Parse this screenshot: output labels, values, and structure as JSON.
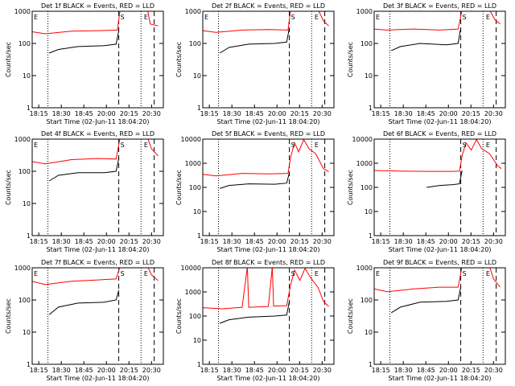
{
  "chart_data": [
    {
      "type": "line",
      "title": "Det 1f BLACK = Events, RED = LLD",
      "xlabel": "Start Time (02-Jun-11 18:04:20)",
      "ylabel": "Counts/sec",
      "yscale": "log",
      "ylim": [
        1,
        1000
      ],
      "yticks": [
        "1",
        "10",
        "100",
        "1000"
      ],
      "xticks": [
        "18:15",
        "18:30",
        "18:45",
        "20:00",
        "20:15",
        "20:30"
      ],
      "markers": [
        {
          "label": "E",
          "x": 0.0
        },
        {
          "label": "S",
          "x": 0.66
        },
        {
          "label": "E",
          "x": 0.84
        }
      ],
      "series": [
        {
          "color": "#ff0000",
          "points": [
            [
              0.0,
              230
            ],
            [
              0.1,
              200
            ],
            [
              0.3,
              240
            ],
            [
              0.5,
              250
            ],
            [
              0.65,
              260
            ],
            [
              0.67,
              1100
            ],
            [
              0.88,
              1100
            ],
            [
              0.9,
              400
            ],
            [
              0.96,
              350
            ]
          ]
        },
        {
          "color": "#000000",
          "points": [
            [
              0.13,
              50
            ],
            [
              0.2,
              65
            ],
            [
              0.35,
              80
            ],
            [
              0.55,
              85
            ],
            [
              0.64,
              95
            ],
            [
              0.66,
              250
            ]
          ]
        }
      ]
    },
    {
      "type": "line",
      "title": "Det 2f BLACK = Events, RED = LLD",
      "xlabel": "Start Time (02-Jun-11 18:04:20)",
      "ylabel": "Counts/sec",
      "yscale": "log",
      "ylim": [
        1,
        1000
      ],
      "yticks": [
        "1",
        "10",
        "100",
        "1000"
      ],
      "xticks": [
        "18:15",
        "18:30",
        "18:45",
        "20:00",
        "20:15",
        "20:30"
      ],
      "markers": [
        {
          "label": "E",
          "x": 0.0
        },
        {
          "label": "S",
          "x": 0.66
        },
        {
          "label": "E",
          "x": 0.84
        }
      ],
      "series": [
        {
          "color": "#ff0000",
          "points": [
            [
              0.0,
              250
            ],
            [
              0.1,
              220
            ],
            [
              0.3,
              260
            ],
            [
              0.5,
              270
            ],
            [
              0.65,
              260
            ],
            [
              0.67,
              1100
            ],
            [
              0.88,
              1100
            ],
            [
              0.92,
              500
            ],
            [
              0.96,
              350
            ]
          ]
        },
        {
          "color": "#000000",
          "points": [
            [
              0.13,
              50
            ],
            [
              0.2,
              75
            ],
            [
              0.35,
              95
            ],
            [
              0.55,
              100
            ],
            [
              0.64,
              110
            ],
            [
              0.66,
              300
            ]
          ]
        }
      ]
    },
    {
      "type": "line",
      "title": "Det 3f BLACK = Events, RED = LLD",
      "xlabel": "Start Time (02-Jun-11 18:04:20)",
      "ylabel": "Counts/sec",
      "yscale": "log",
      "ylim": [
        1,
        1000
      ],
      "yticks": [
        "1",
        "10",
        "100",
        "1000"
      ],
      "xticks": [
        "18:15",
        "18:30",
        "18:45",
        "20:00",
        "20:15",
        "20:30"
      ],
      "markers": [
        {
          "label": "E",
          "x": 0.0
        },
        {
          "label": "S",
          "x": 0.66
        },
        {
          "label": "E",
          "x": 0.84
        }
      ],
      "series": [
        {
          "color": "#ff0000",
          "points": [
            [
              0.0,
              280
            ],
            [
              0.1,
              260
            ],
            [
              0.3,
              280
            ],
            [
              0.5,
              260
            ],
            [
              0.64,
              280
            ],
            [
              0.67,
              1100
            ],
            [
              0.88,
              1100
            ],
            [
              0.92,
              550
            ],
            [
              0.96,
              400
            ]
          ]
        },
        {
          "color": "#000000",
          "points": [
            [
              0.13,
              60
            ],
            [
              0.2,
              80
            ],
            [
              0.35,
              100
            ],
            [
              0.55,
              90
            ],
            [
              0.64,
              100
            ],
            [
              0.66,
              300
            ]
          ]
        }
      ]
    },
    {
      "type": "line",
      "title": "Det 4f BLACK = Events, RED = LLD",
      "xlabel": "Start Time (02-Jun-11 18:04:20)",
      "ylabel": "Counts/sec",
      "yscale": "log",
      "ylim": [
        1,
        1000
      ],
      "yticks": [
        "1",
        "10",
        "100",
        "1000"
      ],
      "xticks": [
        "18:15",
        "18:30",
        "18:45",
        "20:00",
        "20:15",
        "20:30"
      ],
      "markers": [
        {
          "label": "E",
          "x": 0.0
        },
        {
          "label": "S",
          "x": 0.66
        },
        {
          "label": "E",
          "x": 0.84
        }
      ],
      "series": [
        {
          "color": "#ff0000",
          "points": [
            [
              0.0,
              200
            ],
            [
              0.1,
              170
            ],
            [
              0.3,
              230
            ],
            [
              0.5,
              250
            ],
            [
              0.64,
              240
            ],
            [
              0.67,
              1100
            ],
            [
              0.88,
              1100
            ],
            [
              0.91,
              500
            ],
            [
              0.96,
              300
            ]
          ]
        },
        {
          "color": "#000000",
          "points": [
            [
              0.13,
              50
            ],
            [
              0.2,
              75
            ],
            [
              0.35,
              90
            ],
            [
              0.55,
              90
            ],
            [
              0.64,
              100
            ],
            [
              0.66,
              250
            ]
          ]
        }
      ]
    },
    {
      "type": "line",
      "title": "Det 5f BLACK = Events, RED = LLD",
      "xlabel": "Start Time (02-Jun-11 18:04:20)",
      "ylabel": "Counts/sec",
      "yscale": "log",
      "ylim": [
        1,
        10000
      ],
      "yticks": [
        "1",
        "10",
        "100",
        "1000",
        "10000"
      ],
      "xticks": [
        "18:15",
        "18:30",
        "18:45",
        "20:00",
        "20:15",
        "20:30"
      ],
      "markers": [
        {
          "label": "S",
          "x": 0.66
        },
        {
          "label": "E",
          "x": 0.84
        }
      ],
      "series": [
        {
          "color": "#ff0000",
          "points": [
            [
              0.0,
              350
            ],
            [
              0.1,
              300
            ],
            [
              0.3,
              380
            ],
            [
              0.5,
              360
            ],
            [
              0.65,
              380
            ],
            [
              0.67,
              1800
            ],
            [
              0.7,
              7000
            ],
            [
              0.73,
              3000
            ],
            [
              0.77,
              9500
            ],
            [
              0.81,
              4000
            ],
            [
              0.86,
              2500
            ],
            [
              0.92,
              600
            ],
            [
              0.96,
              450
            ]
          ]
        },
        {
          "color": "#000000",
          "points": [
            [
              0.13,
              90
            ],
            [
              0.2,
              120
            ],
            [
              0.35,
              140
            ],
            [
              0.55,
              135
            ],
            [
              0.64,
              150
            ],
            [
              0.66,
              400
            ]
          ]
        }
      ]
    },
    {
      "type": "line",
      "title": "Det 6f BLACK = Events, RED = LLD",
      "xlabel": "Start Time (02-Jun-11 18:04:20)",
      "ylabel": "Counts/sec",
      "yscale": "log",
      "ylim": [
        1,
        10000
      ],
      "yticks": [
        "1",
        "10",
        "100",
        "1000",
        "10000"
      ],
      "xticks": [
        "18:15",
        "18:30",
        "18:45",
        "20:00",
        "20:15",
        "20:30"
      ],
      "markers": [
        {
          "label": "S",
          "x": 0.66
        },
        {
          "label": "E",
          "x": 0.84
        }
      ],
      "series": [
        {
          "color": "#ff0000",
          "points": [
            [
              0.0,
              500
            ],
            [
              0.2,
              470
            ],
            [
              0.4,
              460
            ],
            [
              0.6,
              460
            ],
            [
              0.65,
              470
            ],
            [
              0.67,
              2000
            ],
            [
              0.7,
              7000
            ],
            [
              0.74,
              3500
            ],
            [
              0.78,
              9500
            ],
            [
              0.82,
              4000
            ],
            [
              0.88,
              2500
            ],
            [
              0.94,
              800
            ],
            [
              0.97,
              600
            ]
          ]
        },
        {
          "color": "#000000",
          "points": [
            [
              0.4,
              100
            ],
            [
              0.5,
              120
            ],
            [
              0.6,
              130
            ],
            [
              0.65,
              140
            ],
            [
              0.67,
              500
            ]
          ]
        }
      ]
    },
    {
      "type": "line",
      "title": "Det 7f BLACK = Events, RED = LLD",
      "xlabel": "Start Time (02-Jun-11 18:04:20)",
      "ylabel": "Counts/sec",
      "yscale": "log",
      "ylim": [
        1,
        1000
      ],
      "yticks": [
        "1",
        "10",
        "100",
        "1000"
      ],
      "xticks": [
        "18:15",
        "18:30",
        "18:45",
        "20:00",
        "20:15",
        "20:30"
      ],
      "markers": [
        {
          "label": "E",
          "x": 0.0
        },
        {
          "label": "S",
          "x": 0.66
        },
        {
          "label": "E",
          "x": 0.84
        }
      ],
      "series": [
        {
          "color": "#ff0000",
          "points": [
            [
              0.0,
              380
            ],
            [
              0.1,
              300
            ],
            [
              0.3,
              380
            ],
            [
              0.5,
              420
            ],
            [
              0.64,
              450
            ],
            [
              0.67,
              1100
            ],
            [
              0.88,
              1100
            ],
            [
              0.91,
              600
            ],
            [
              0.96,
              400
            ]
          ]
        },
        {
          "color": "#000000",
          "points": [
            [
              0.13,
              35
            ],
            [
              0.2,
              60
            ],
            [
              0.35,
              80
            ],
            [
              0.55,
              85
            ],
            [
              0.64,
              100
            ],
            [
              0.66,
              200
            ]
          ]
        }
      ]
    },
    {
      "type": "line",
      "title": "Det 8f BLACK = Events, RED = LLD",
      "xlabel": "Start Time (02-Jun-11 18:04:20)",
      "ylabel": "Counts/sec",
      "yscale": "log",
      "ylim": [
        1,
        10000
      ],
      "yticks": [
        "1",
        "10",
        "100",
        "1000",
        "10000"
      ],
      "xticks": [
        "18:15",
        "18:30",
        "18:45",
        "20:00",
        "20:15",
        "20:30"
      ],
      "markers": [
        {
          "label": "S",
          "x": 0.66
        },
        {
          "label": "E",
          "x": 0.84
        }
      ],
      "series": [
        {
          "color": "#ff0000",
          "points": [
            [
              0.0,
              220
            ],
            [
              0.15,
              200
            ],
            [
              0.3,
              230
            ],
            [
              0.34,
              11000
            ],
            [
              0.35,
              230
            ],
            [
              0.5,
              250
            ],
            [
              0.53,
              11000
            ],
            [
              0.54,
              260
            ],
            [
              0.64,
              270
            ],
            [
              0.67,
              2000
            ],
            [
              0.7,
              8000
            ],
            [
              0.74,
              3000
            ],
            [
              0.78,
              9500
            ],
            [
              0.82,
              4000
            ],
            [
              0.88,
              1500
            ],
            [
              0.92,
              400
            ],
            [
              0.96,
              250
            ]
          ]
        },
        {
          "color": "#000000",
          "points": [
            [
              0.13,
              50
            ],
            [
              0.2,
              70
            ],
            [
              0.35,
              90
            ],
            [
              0.55,
              100
            ],
            [
              0.64,
              110
            ],
            [
              0.66,
              400
            ]
          ]
        }
      ]
    },
    {
      "type": "line",
      "title": "Det 9f BLACK = Events, RED = LLD",
      "xlabel": "Start Time (02-Jun-11 18:04:20)",
      "ylabel": "Counts/sec",
      "yscale": "log",
      "ylim": [
        1,
        1000
      ],
      "yticks": [
        "1",
        "10",
        "100",
        "1000"
      ],
      "xticks": [
        "18:15",
        "18:30",
        "18:45",
        "20:00",
        "20:15",
        "20:30"
      ],
      "markers": [
        {
          "label": "E",
          "x": 0.0
        },
        {
          "label": "S",
          "x": 0.66
        },
        {
          "label": "E",
          "x": 0.84
        }
      ],
      "series": [
        {
          "color": "#ff0000",
          "points": [
            [
              0.0,
              220
            ],
            [
              0.1,
              180
            ],
            [
              0.3,
              220
            ],
            [
              0.5,
              250
            ],
            [
              0.64,
              250
            ],
            [
              0.67,
              1100
            ],
            [
              0.88,
              1100
            ],
            [
              0.91,
              450
            ],
            [
              0.96,
              250
            ]
          ]
        },
        {
          "color": "#000000",
          "points": [
            [
              0.13,
              40
            ],
            [
              0.2,
              60
            ],
            [
              0.35,
              85
            ],
            [
              0.55,
              90
            ],
            [
              0.64,
              100
            ],
            [
              0.66,
              250
            ]
          ]
        }
      ]
    }
  ]
}
